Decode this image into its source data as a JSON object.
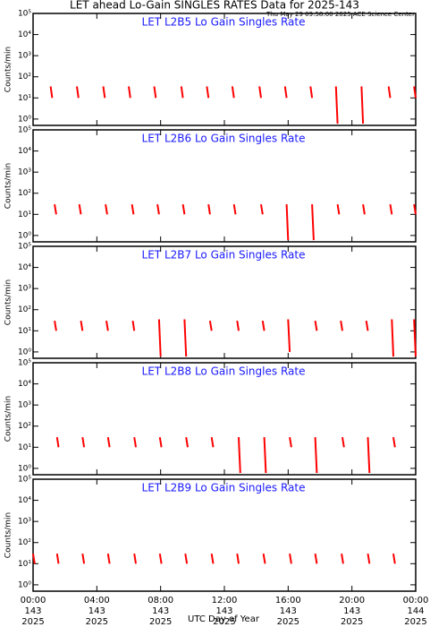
{
  "page": {
    "title": "LET ahead Lo-Gain SINGLES RATES Data for 2025-143",
    "subtitle": "Thu May 29 09:58:00 2025 ACE Science Center",
    "xlabel": "UTC Day of Year"
  },
  "chart_data": [
    {
      "type": "line",
      "title": "LET L2B5 Lo Gain Singles Rate",
      "ylabel": "Counts/min",
      "color": "#ff0000",
      "log_y": true,
      "x": [
        1.1,
        1.2,
        1.2,
        2.75,
        2.85,
        2.85,
        4.4,
        4.5,
        4.5,
        6.0,
        6.1,
        6.1,
        7.6,
        7.7,
        7.7,
        9.3,
        9.4,
        9.4,
        10.9,
        11.0,
        11.0,
        12.5,
        12.6,
        12.6,
        14.2,
        14.3,
        14.3,
        15.8,
        15.9,
        15.9,
        17.4,
        17.5,
        17.5,
        19.0,
        19.1,
        19.1,
        20.6,
        20.7,
        20.7,
        22.3,
        22.4,
        22.4,
        23.9,
        24.0,
        24.0
      ],
      "values": [
        35,
        10,
        null,
        35,
        10,
        null,
        35,
        10,
        null,
        35,
        10,
        null,
        35,
        10,
        null,
        35,
        10,
        null,
        35,
        10,
        null,
        35,
        10,
        null,
        35,
        10,
        null,
        35,
        10,
        null,
        35,
        10,
        null,
        35,
        0.6,
        null,
        35,
        0.6,
        null,
        35,
        10,
        null,
        35,
        10,
        null
      ],
      "xlim": [
        0,
        24
      ],
      "xticks": [
        0,
        4,
        8,
        12,
        16,
        20,
        24
      ],
      "ylim": [
        0.5,
        100000
      ],
      "yticks": [
        {
          "value": 1,
          "label": "10⁰"
        },
        {
          "value": 10,
          "label": "10¹"
        },
        {
          "value": 100,
          "label": "10²"
        },
        {
          "value": 1000,
          "label": "10³"
        },
        {
          "value": 10000,
          "label": "10⁴"
        },
        {
          "value": 100000,
          "label": "10⁵"
        }
      ]
    },
    {
      "type": "line",
      "title": "LET L2B6 Lo Gain Singles Rate",
      "ylabel": "Counts/min",
      "color": "#ff0000",
      "log_y": true,
      "x": [
        1.35,
        1.45,
        1.45,
        2.9,
        3.0,
        3.0,
        4.55,
        4.65,
        4.65,
        6.2,
        6.3,
        6.3,
        7.8,
        7.9,
        7.9,
        9.4,
        9.5,
        9.5,
        11.0,
        11.1,
        11.1,
        12.6,
        12.7,
        12.7,
        14.3,
        14.4,
        14.4,
        15.9,
        16.0,
        16.0,
        17.5,
        17.6,
        17.6,
        19.1,
        19.2,
        19.2,
        20.7,
        20.8,
        20.8,
        22.4,
        22.5,
        22.5,
        23.9,
        24.0,
        24.0
      ],
      "values": [
        30,
        10,
        null,
        30,
        10,
        null,
        30,
        10,
        null,
        30,
        10,
        null,
        30,
        10,
        null,
        30,
        10,
        null,
        30,
        10,
        null,
        30,
        10,
        null,
        30,
        10,
        null,
        30,
        0.6,
        null,
        30,
        0.6,
        null,
        30,
        10,
        null,
        30,
        10,
        null,
        30,
        10,
        null,
        30,
        10,
        null
      ],
      "xlim": [
        0,
        24
      ],
      "xticks": [
        0,
        4,
        8,
        12,
        16,
        20,
        24
      ],
      "ylim": [
        0.5,
        100000
      ],
      "yticks": [
        {
          "value": 1,
          "label": "10⁰"
        },
        {
          "value": 10,
          "label": "10¹"
        },
        {
          "value": 100,
          "label": "10²"
        },
        {
          "value": 1000,
          "label": "10³"
        },
        {
          "value": 10000,
          "label": "10⁴"
        },
        {
          "value": 100000,
          "label": "10⁵"
        }
      ]
    },
    {
      "type": "line",
      "title": "LET L2B7 Lo Gain Singles Rate",
      "ylabel": "Counts/min",
      "color": "#ff0000",
      "log_y": true,
      "x": [
        1.35,
        1.45,
        1.45,
        3.0,
        3.1,
        3.1,
        4.6,
        4.7,
        4.7,
        6.25,
        6.35,
        6.35,
        7.9,
        8.0,
        8.0,
        9.5,
        9.6,
        9.6,
        11.1,
        11.2,
        11.2,
        12.8,
        12.9,
        12.9,
        14.4,
        14.5,
        14.5,
        16.0,
        16.1,
        16.1,
        17.7,
        17.8,
        17.8,
        19.3,
        19.4,
        19.4,
        20.9,
        21.0,
        21.0,
        22.5,
        22.6,
        22.6,
        23.9,
        24.0,
        24.0
      ],
      "values": [
        30,
        10,
        null,
        30,
        10,
        null,
        30,
        10,
        null,
        30,
        10,
        null,
        35,
        0.6,
        null,
        35,
        0.6,
        null,
        30,
        10,
        null,
        30,
        10,
        null,
        30,
        10,
        null,
        35,
        1,
        null,
        30,
        10,
        null,
        30,
        10,
        null,
        30,
        10,
        null,
        35,
        0.6,
        null,
        35,
        0.6,
        null
      ],
      "xlim": [
        0,
        24
      ],
      "xticks": [
        0,
        4,
        8,
        12,
        16,
        20,
        24
      ],
      "ylim": [
        0.5,
        100000
      ],
      "yticks": [
        {
          "value": 1,
          "label": "10⁰"
        },
        {
          "value": 10,
          "label": "10¹"
        },
        {
          "value": 100,
          "label": "10²"
        },
        {
          "value": 1000,
          "label": "10³"
        },
        {
          "value": 10000,
          "label": "10⁴"
        },
        {
          "value": 100000,
          "label": "10⁵"
        }
      ]
    },
    {
      "type": "line",
      "title": "LET L2B8 Lo Gain Singles Rate",
      "ylabel": "Counts/min",
      "color": "#ff0000",
      "log_y": true,
      "x": [
        1.5,
        1.6,
        1.6,
        3.1,
        3.2,
        3.2,
        4.7,
        4.8,
        4.8,
        6.35,
        6.45,
        6.45,
        7.95,
        8.05,
        8.05,
        9.6,
        9.7,
        9.7,
        11.2,
        11.3,
        11.3,
        12.9,
        13.0,
        13.0,
        14.5,
        14.6,
        14.6,
        16.1,
        16.2,
        16.2,
        17.7,
        17.8,
        17.8,
        19.4,
        19.5,
        19.5,
        21.0,
        21.1,
        21.1,
        22.6,
        22.7,
        22.7
      ],
      "values": [
        30,
        10,
        null,
        30,
        10,
        null,
        30,
        10,
        null,
        30,
        10,
        null,
        30,
        10,
        null,
        30,
        10,
        null,
        30,
        10,
        null,
        30,
        0.6,
        null,
        30,
        0.6,
        null,
        30,
        10,
        null,
        30,
        0.6,
        null,
        30,
        10,
        null,
        30,
        0.6,
        null,
        30,
        10,
        null
      ],
      "xlim": [
        0,
        24
      ],
      "xticks": [
        0,
        4,
        8,
        12,
        16,
        20,
        24
      ],
      "ylim": [
        0.5,
        100000
      ],
      "yticks": [
        {
          "value": 1,
          "label": "10⁰"
        },
        {
          "value": 10,
          "label": "10¹"
        },
        {
          "value": 100,
          "label": "10²"
        },
        {
          "value": 1000,
          "label": "10³"
        },
        {
          "value": 10000,
          "label": "10⁴"
        },
        {
          "value": 100000,
          "label": "10⁵"
        }
      ]
    },
    {
      "type": "line",
      "title": "LET L2B9 Lo Gain Singles Rate",
      "ylabel": "Counts/min",
      "color": "#ff0000",
      "log_y": true,
      "x": [
        0.0,
        0.1,
        0.1,
        1.5,
        1.6,
        1.6,
        3.1,
        3.2,
        3.2,
        4.7,
        4.8,
        4.8,
        6.35,
        6.45,
        6.45,
        7.95,
        8.05,
        8.05,
        9.55,
        9.65,
        9.65,
        11.2,
        11.3,
        11.3,
        12.8,
        12.9,
        12.9,
        14.45,
        14.55,
        14.55,
        16.1,
        16.2,
        16.2,
        17.7,
        17.8,
        17.8,
        19.35,
        19.45,
        19.45,
        21.0,
        21.1,
        21.1,
        22.6,
        22.7,
        22.7
      ],
      "values": [
        30,
        10,
        null,
        30,
        10,
        null,
        30,
        10,
        null,
        30,
        10,
        null,
        30,
        10,
        null,
        30,
        10,
        null,
        30,
        10,
        null,
        30,
        10,
        null,
        30,
        10,
        null,
        30,
        10,
        null,
        30,
        10,
        null,
        30,
        10,
        null,
        30,
        10,
        null,
        30,
        10,
        null,
        30,
        10,
        null
      ],
      "xlim": [
        0,
        24
      ],
      "ylim": [
        0.5,
        100000
      ],
      "xticks": [
        {
          "value": 0,
          "label": "00:00"
        },
        {
          "value": 4,
          "label": "04:00"
        },
        {
          "value": 8,
          "label": "08:00"
        },
        {
          "value": 12,
          "label": "12:00"
        },
        {
          "value": 16,
          "label": "16:00"
        },
        {
          "value": 20,
          "label": "20:00"
        },
        {
          "value": 24,
          "label": "00:00"
        }
      ],
      "xtick_days": [
        "143",
        "143",
        "143",
        "143",
        "143",
        "143",
        "144"
      ],
      "xtick_years": [
        "2025",
        "2025",
        "2025",
        "2025",
        "2025",
        "2025",
        "2025"
      ],
      "yticks": [
        {
          "value": 1,
          "label": "10⁰"
        },
        {
          "value": 10,
          "label": "10¹"
        },
        {
          "value": 100,
          "label": "10²"
        },
        {
          "value": 1000,
          "label": "10³"
        },
        {
          "value": 10000,
          "label": "10⁴"
        },
        {
          "value": 100000,
          "label": "10⁵"
        }
      ]
    }
  ]
}
